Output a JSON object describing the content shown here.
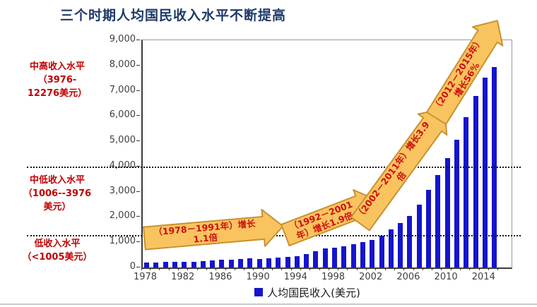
{
  "title": "三个时期人均国民收入水平不断提高",
  "income_bands": [
    {
      "label": "中高收入水平\n（3976-\n12276美元）"
    },
    {
      "label": "中低收入水平\n（1006--3976\n美元）"
    },
    {
      "label": "低收入水平\n（<1005美元）"
    }
  ],
  "growth_arrows": [
    {
      "label": "（1978－1991年）增长1.1倍"
    },
    {
      "label": "（1992－2001年）增长1.9倍"
    },
    {
      "label": "（2002－2011年）增长3.9倍"
    },
    {
      "label": "（2012－2015年）增长56%"
    }
  ],
  "legend": {
    "label": "人均国民收入(美元)"
  },
  "colors": {
    "bar": "#1414CE",
    "title": "#1E3A68",
    "band_label": "#C00000",
    "arrow_fill": "#F9C35F",
    "arrow_border": "#C8922E",
    "arrow_text": "#CC1111",
    "reference_line": "#141414"
  },
  "chart_data": {
    "type": "bar",
    "title": "三个时期人均国民收入水平不断提高",
    "xlabel": "",
    "ylabel": "",
    "x": [
      1978,
      1979,
      1980,
      1981,
      1982,
      1983,
      1984,
      1985,
      1986,
      1987,
      1988,
      1989,
      1990,
      1991,
      1992,
      1993,
      1994,
      1995,
      1996,
      1997,
      1998,
      1999,
      2000,
      2001,
      2002,
      2003,
      2004,
      2005,
      2006,
      2007,
      2008,
      2009,
      2010,
      2011,
      2012,
      2013,
      2014,
      2015
    ],
    "values": [
      200,
      210,
      220,
      220,
      220,
      230,
      250,
      290,
      300,
      320,
      340,
      350,
      330,
      350,
      390,
      410,
      460,
      540,
      650,
      750,
      790,
      840,
      930,
      1000,
      1100,
      1270,
      1500,
      1760,
      2050,
      2490,
      3070,
      3650,
      4340,
      5060,
      5940,
      6800,
      7520,
      7940
    ],
    "series_name": "人均国民收入(美元)",
    "ylim": [
      0,
      9000
    ],
    "y_tick_labels": [
      "0",
      "1,000",
      "2,000",
      "3,000",
      "4,000",
      "5,000",
      "6,000",
      "7,000",
      "8,000",
      "9,000"
    ],
    "x_tick_labels": [
      "1978",
      "1982",
      "1986",
      "1990",
      "1994",
      "1998",
      "2002",
      "2006",
      "2010",
      "2014"
    ],
    "grid": false,
    "legend_position": "bottom",
    "reference_lines": [
      3976,
      1250
    ],
    "annotations": [
      "（1978－1991年）增长1.1倍",
      "（1992－2001年）增长1.9倍",
      "（2002－2011年）增长3.9倍",
      "（2012－2015年）增长56%"
    ],
    "income_thresholds": {
      "upper_middle": "3976-12276美元",
      "lower_middle": "1006--3976美元",
      "low": "<1005美元"
    }
  }
}
